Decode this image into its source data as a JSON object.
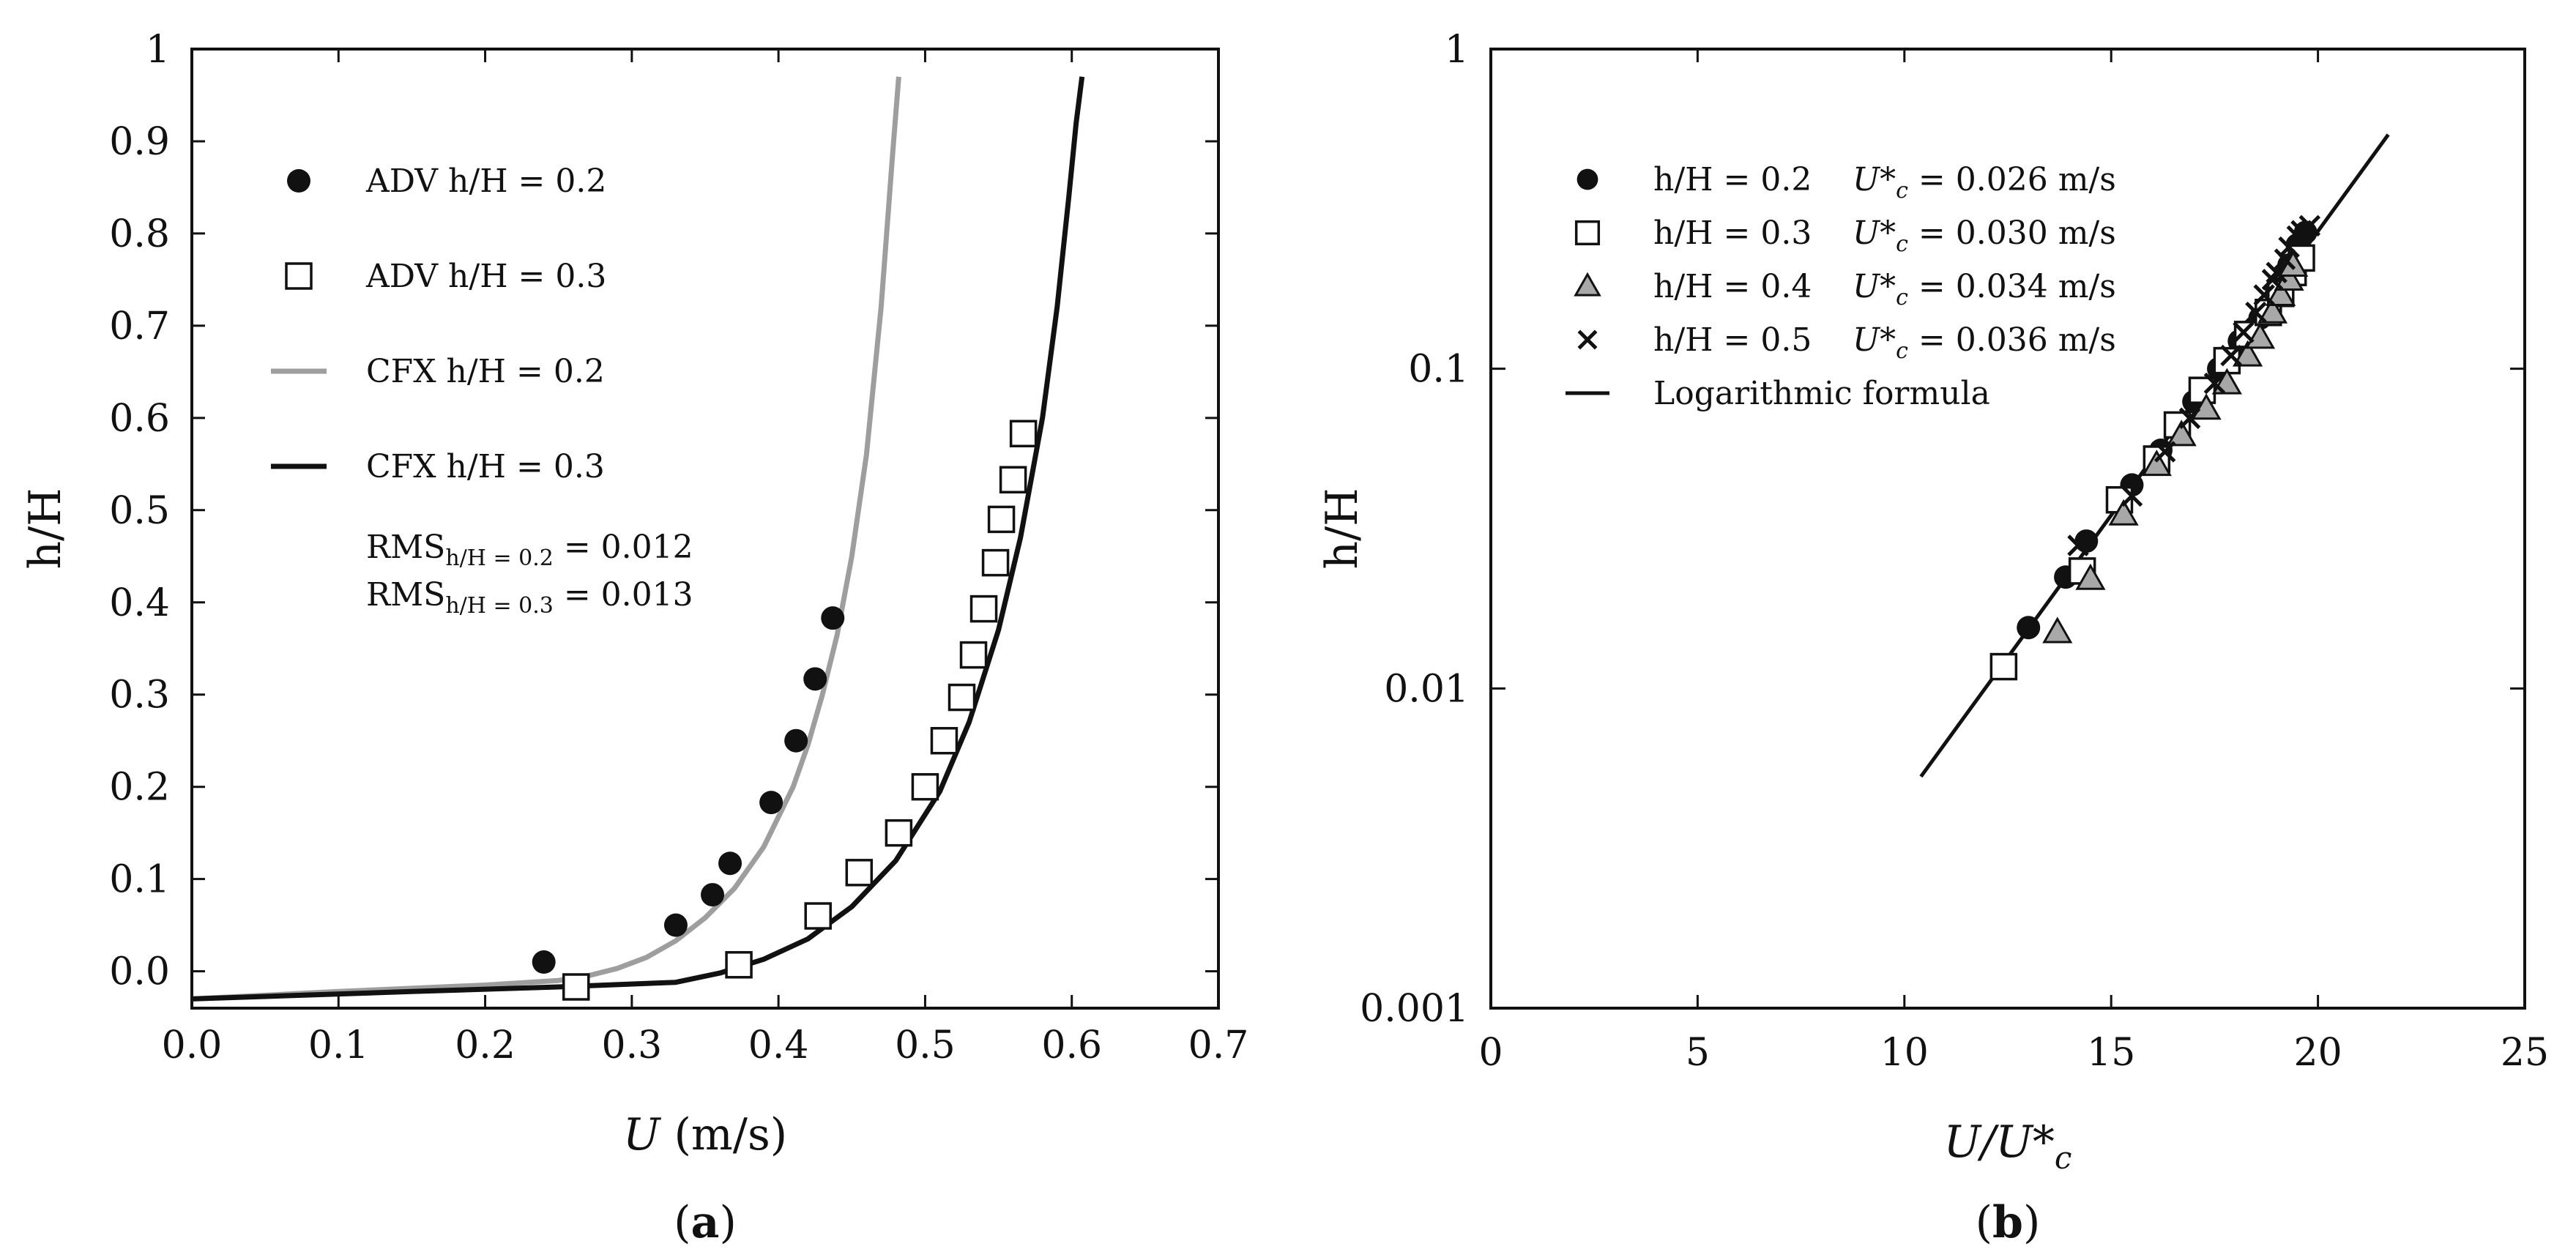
{
  "colors": {
    "black": "#111111",
    "gray_line": "#9e9e9e",
    "gray_fill": "#a8a8a8",
    "white": "#ffffff"
  },
  "chart_data": [
    {
      "type": "scatter",
      "panel_label": "a",
      "xlabel_var": "U",
      "xlabel_unit": " (m/s)",
      "ylabel": "h/H",
      "xlim": [
        0.0,
        0.7
      ],
      "ylim": [
        -0.04,
        1.0
      ],
      "x_ticks": [
        0.0,
        0.1,
        0.2,
        0.3,
        0.4,
        0.5,
        0.6,
        0.7
      ],
      "x_tick_labels": [
        "0.0",
        "0.1",
        "0.2",
        "0.3",
        "0.4",
        "0.5",
        "0.6",
        "0.7"
      ],
      "y_ticks": [
        0.0,
        0.1,
        0.2,
        0.3,
        0.4,
        0.5,
        0.6,
        0.7,
        0.8,
        0.9,
        1.0
      ],
      "y_tick_labels": [
        "0.0",
        "0.1",
        "0.2",
        "0.3",
        "0.4",
        "0.5",
        "0.6",
        "0.7",
        "0.8",
        "0.9",
        "1"
      ],
      "legend_position": "top-left",
      "series": [
        {
          "name": "ADV h/H = 0.2",
          "kind": "markers",
          "marker": "filled-circle",
          "points": [
            [
              0.24,
              0.01
            ],
            [
              0.33,
              0.05
            ],
            [
              0.355,
              0.083
            ],
            [
              0.367,
              0.117
            ],
            [
              0.395,
              0.183
            ],
            [
              0.412,
              0.25
            ],
            [
              0.425,
              0.317
            ],
            [
              0.437,
              0.383
            ]
          ]
        },
        {
          "name": "ADV h/H = 0.3",
          "kind": "markers",
          "marker": "open-square",
          "points": [
            [
              0.262,
              -0.017
            ],
            [
              0.373,
              0.007
            ],
            [
              0.427,
              0.06
            ],
            [
              0.455,
              0.107
            ],
            [
              0.482,
              0.15
            ],
            [
              0.5,
              0.2
            ],
            [
              0.513,
              0.25
            ],
            [
              0.525,
              0.297
            ],
            [
              0.533,
              0.343
            ],
            [
              0.54,
              0.393
            ],
            [
              0.548,
              0.443
            ],
            [
              0.552,
              0.49
            ],
            [
              0.56,
              0.533
            ],
            [
              0.567,
              0.583
            ]
          ]
        },
        {
          "name": "CFX  h/H = 0.2",
          "kind": "line",
          "color": "gray",
          "points": [
            [
              0.0,
              -0.03
            ],
            [
              0.1,
              -0.022
            ],
            [
              0.2,
              -0.015
            ],
            [
              0.25,
              -0.01
            ],
            [
              0.27,
              -0.005
            ],
            [
              0.29,
              0.003
            ],
            [
              0.31,
              0.015
            ],
            [
              0.33,
              0.033
            ],
            [
              0.35,
              0.058
            ],
            [
              0.37,
              0.09
            ],
            [
              0.39,
              0.135
            ],
            [
              0.41,
              0.2
            ],
            [
              0.42,
              0.245
            ],
            [
              0.43,
              0.3
            ],
            [
              0.44,
              0.365
            ],
            [
              0.45,
              0.45
            ],
            [
              0.46,
              0.56
            ],
            [
              0.47,
              0.72
            ],
            [
              0.478,
              0.89
            ],
            [
              0.482,
              0.97
            ]
          ]
        },
        {
          "name": "CFX  h/H = 0.3",
          "kind": "line",
          "color": "black",
          "points": [
            [
              0.0,
              -0.03
            ],
            [
              0.15,
              -0.022
            ],
            [
              0.25,
              -0.017
            ],
            [
              0.33,
              -0.012
            ],
            [
              0.36,
              -0.002
            ],
            [
              0.39,
              0.013
            ],
            [
              0.42,
              0.035
            ],
            [
              0.45,
              0.07
            ],
            [
              0.48,
              0.12
            ],
            [
              0.51,
              0.195
            ],
            [
              0.53,
              0.27
            ],
            [
              0.55,
              0.37
            ],
            [
              0.565,
              0.47
            ],
            [
              0.58,
              0.6
            ],
            [
              0.59,
              0.72
            ],
            [
              0.598,
              0.84
            ],
            [
              0.603,
              0.92
            ],
            [
              0.607,
              0.97
            ]
          ]
        }
      ],
      "legend": [
        {
          "label": "ADV h/H = 0.2",
          "symbol": "filled-circle"
        },
        {
          "label": "ADV h/H = 0.3",
          "symbol": "open-square"
        },
        {
          "label": "CFX  h/H = 0.2",
          "symbol": "gray-line"
        },
        {
          "label": "CFX  h/H = 0.3",
          "symbol": "black-line"
        }
      ],
      "annotations": [
        {
          "base": "RMS",
          "sub": "h/H = 0.2",
          "tail": " = 0.012"
        },
        {
          "base": "RMS",
          "sub": "h/H = 0.3",
          "tail": " = 0.013"
        }
      ]
    },
    {
      "type": "scatter",
      "panel_label": "b",
      "xlabel_parts": [
        "U/U*",
        "c"
      ],
      "ylabel": "h/H",
      "yscale": "log",
      "xlim": [
        0,
        25
      ],
      "ylim": [
        0.001,
        1
      ],
      "x_ticks": [
        0,
        5,
        10,
        15,
        20,
        25
      ],
      "x_tick_labels": [
        "0",
        "5",
        "10",
        "15",
        "20",
        "25"
      ],
      "y_ticks": [
        0.001,
        0.01,
        0.1,
        1
      ],
      "y_tick_labels": [
        "0.001",
        "0.01",
        "0.1",
        "1"
      ],
      "legend_position": "top-left",
      "series": [
        {
          "name": "h/H = 0.2",
          "ustar": "U*c = 0.026 m/s",
          "marker": "filled-circle",
          "points": [
            [
              13.0,
              0.0155
            ],
            [
              13.9,
              0.0223
            ],
            [
              14.4,
              0.0289
            ],
            [
              15.5,
              0.0433
            ],
            [
              16.2,
              0.0556
            ],
            [
              17.0,
              0.0789
            ],
            [
              17.6,
              0.1
            ],
            [
              18.1,
              0.122
            ],
            [
              18.6,
              0.144
            ],
            [
              19.0,
              0.178
            ],
            [
              19.3,
              0.211
            ],
            [
              19.5,
              0.244
            ],
            [
              19.7,
              0.267
            ]
          ]
        },
        {
          "name": "h/H = 0.3",
          "ustar": "U*c = 0.030 m/s",
          "marker": "open-square",
          "points": [
            [
              12.4,
              0.0117
            ],
            [
              14.3,
              0.0233
            ],
            [
              15.2,
              0.0389
            ],
            [
              16.1,
              0.0522
            ],
            [
              16.6,
              0.0667
            ],
            [
              17.2,
              0.0856
            ],
            [
              17.8,
              0.106
            ],
            [
              18.3,
              0.128
            ],
            [
              18.8,
              0.15
            ],
            [
              19.1,
              0.172
            ],
            [
              19.4,
              0.2
            ],
            [
              19.6,
              0.222
            ]
          ]
        },
        {
          "name": "h/H = 0.4",
          "ustar": "U*c = 0.034 m/s",
          "marker": "gray-triangle",
          "points": [
            [
              13.7,
              0.015
            ],
            [
              14.5,
              0.022
            ],
            [
              15.3,
              0.035
            ],
            [
              16.1,
              0.05
            ],
            [
              16.7,
              0.062
            ],
            [
              17.3,
              0.075
            ],
            [
              17.8,
              0.09
            ],
            [
              18.3,
              0.11
            ],
            [
              18.6,
              0.125
            ],
            [
              18.9,
              0.15
            ],
            [
              19.1,
              0.17
            ],
            [
              19.3,
              0.19
            ],
            [
              19.4,
              0.21
            ]
          ]
        },
        {
          "name": "h/H = 0.5",
          "ustar": "U*c = 0.036 m/s",
          "marker": "x",
          "points": [
            [
              14.2,
              0.028
            ],
            [
              15.5,
              0.04
            ],
            [
              16.3,
              0.055
            ],
            [
              16.9,
              0.07
            ],
            [
              17.5,
              0.09
            ],
            [
              17.9,
              0.11
            ],
            [
              18.2,
              0.13
            ],
            [
              18.5,
              0.15
            ],
            [
              18.7,
              0.17
            ],
            [
              18.9,
              0.19
            ],
            [
              19.0,
              0.2
            ],
            [
              19.2,
              0.22
            ],
            [
              19.3,
              0.24
            ],
            [
              19.5,
              0.26
            ],
            [
              19.6,
              0.27
            ],
            [
              19.8,
              0.28
            ]
          ]
        },
        {
          "name": "Logarithmic formula",
          "kind": "line",
          "points": [
            [
              10.4,
              0.0053
            ],
            [
              21.7,
              0.54
            ]
          ]
        }
      ],
      "legend": [
        {
          "label": "h/H = 0.2",
          "symbol": "filled-circle",
          "u_main": "U*",
          "u_sub": "c",
          "u_tail": " = 0.026 m/s"
        },
        {
          "label": "h/H = 0.3",
          "symbol": "open-square",
          "u_main": "U*",
          "u_sub": "c",
          "u_tail": " = 0.030 m/s"
        },
        {
          "label": "h/H = 0.4",
          "symbol": "gray-triangle",
          "u_main": "U*",
          "u_sub": "c",
          "u_tail": " = 0.034 m/s"
        },
        {
          "label": "h/H = 0.5",
          "symbol": "x",
          "u_main": "U*",
          "u_sub": "c",
          "u_tail": " = 0.036 m/s"
        },
        {
          "label": "Logarithmic formula",
          "symbol": "black-line"
        }
      ]
    }
  ]
}
